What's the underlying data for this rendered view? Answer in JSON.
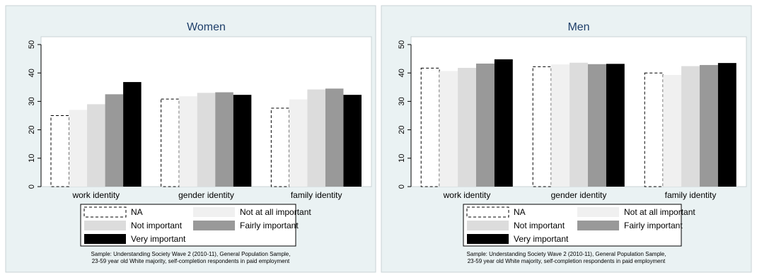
{
  "colors": {
    "panel_bg": "#eaf2f3",
    "plot_bg": "#ffffff",
    "title_text": "#1e3f6a",
    "frame": "#c9d3d6",
    "na_fill": "#ffffff",
    "not_at_all": "#f0f0f0",
    "not_important": "#dcdcdc",
    "fairly": "#999999",
    "very": "#000000"
  },
  "legend_items": [
    {
      "label": "NA",
      "style": "dashed"
    },
    {
      "label": "Not at all important",
      "style": "not_at_all"
    },
    {
      "label": "Not important",
      "style": "not_important"
    },
    {
      "label": "Fairly important",
      "style": "fairly"
    },
    {
      "label": "Very important",
      "style": "very"
    }
  ],
  "chart_data": [
    {
      "type": "bar",
      "title": "Women",
      "categories": [
        "work identity",
        "gender identity",
        "family identity"
      ],
      "ylim": [
        0,
        50
      ],
      "yticks": [
        "0",
        "10",
        "20",
        "30",
        "40",
        "50"
      ],
      "grid": false,
      "legend": "bottom",
      "series": [
        {
          "name": "NA",
          "values": [
            25,
            30.8,
            27.6
          ]
        },
        {
          "name": "Not at all important",
          "values": [
            27,
            31.8,
            30.7
          ]
        },
        {
          "name": "Not important",
          "values": [
            29,
            33,
            34.2
          ]
        },
        {
          "name": "Fairly important",
          "values": [
            32.5,
            33.2,
            34.5
          ]
        },
        {
          "name": "Very important",
          "values": [
            36.8,
            32.3,
            32.3
          ]
        }
      ],
      "note": [
        "Sample: Understanding Society Wave 2 (2010-11), General Population Sample,",
        "23-59 year old White majority, self-completion respondents in paid employment"
      ]
    },
    {
      "type": "bar",
      "title": "Men",
      "categories": [
        "work identity",
        "gender identity",
        "family identity"
      ],
      "ylim": [
        0,
        50
      ],
      "yticks": [
        "0",
        "10",
        "20",
        "30",
        "40",
        "50"
      ],
      "grid": false,
      "legend": "bottom",
      "series": [
        {
          "name": "NA",
          "values": [
            41.7,
            42.2,
            40
          ]
        },
        {
          "name": "Not at all important",
          "values": [
            40.7,
            43,
            39.3
          ]
        },
        {
          "name": "Not important",
          "values": [
            41.8,
            43.6,
            42.4
          ]
        },
        {
          "name": "Fairly important",
          "values": [
            43.3,
            43.1,
            42.8
          ]
        },
        {
          "name": "Very important",
          "values": [
            44.8,
            43.2,
            43.5
          ]
        }
      ],
      "note": [
        "Sample: Understanding Society Wave 2 (2010-11), General Population Sample,",
        "23-59 year old White majority, self-completion respondents in paid employment"
      ]
    }
  ]
}
